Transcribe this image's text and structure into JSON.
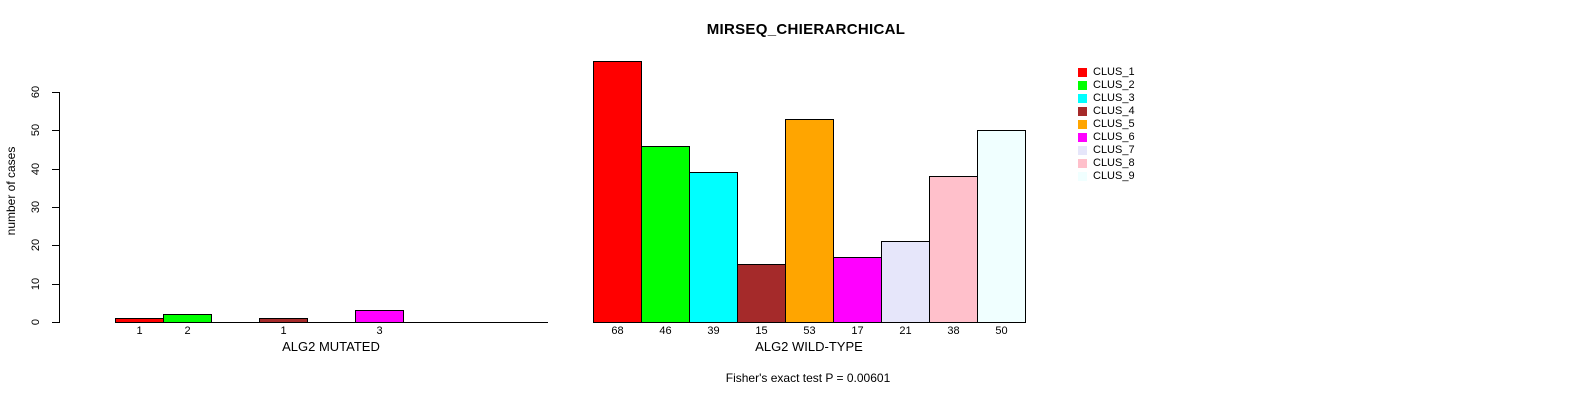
{
  "title": "MIRSEQ_CHIERARCHICAL",
  "y_axis": {
    "label": "number of cases",
    "ticks": [
      0,
      10,
      20,
      30,
      40,
      50,
      60
    ]
  },
  "footer": "Fisher's exact test P = 0.00601",
  "legend": {
    "items": [
      {
        "label": "CLUS_1",
        "color": "#FF0000"
      },
      {
        "label": "CLUS_2",
        "color": "#00FF00"
      },
      {
        "label": "CLUS_3",
        "color": "#00FFFF"
      },
      {
        "label": "CLUS_4",
        "color": "#A52A2A"
      },
      {
        "label": "CLUS_5",
        "color": "#FFA500"
      },
      {
        "label": "CLUS_6",
        "color": "#FF00FF"
      },
      {
        "label": "CLUS_7",
        "color": "#E6E6FA"
      },
      {
        "label": "CLUS_8",
        "color": "#FFC0CB"
      },
      {
        "label": "CLUS_9",
        "color": "#F0FFFF"
      }
    ]
  },
  "chart_data": {
    "type": "bar",
    "title": "MIRSEQ_CHIERARCHICAL",
    "ylabel": "number of cases",
    "ylim": [
      0,
      60
    ],
    "yticks": [
      0,
      10,
      20,
      30,
      40,
      50,
      60
    ],
    "grid": false,
    "legend_position": "right",
    "clusters": [
      "CLUS_1",
      "CLUS_2",
      "CLUS_3",
      "CLUS_4",
      "CLUS_5",
      "CLUS_6",
      "CLUS_7",
      "CLUS_8",
      "CLUS_9"
    ],
    "colors": [
      "#FF0000",
      "#00FF00",
      "#00FFFF",
      "#A52A2A",
      "#FFA500",
      "#FF00FF",
      "#E6E6FA",
      "#FFC0CB",
      "#F0FFFF"
    ],
    "groups": [
      {
        "key": "mutated",
        "label": "ALG2 MUTATED",
        "values": [
          1,
          2,
          0,
          1,
          0,
          3,
          0,
          0,
          0
        ]
      },
      {
        "key": "wildtype",
        "label": "ALG2 WILD-TYPE",
        "values": [
          68,
          46,
          39,
          15,
          53,
          17,
          21,
          38,
          50
        ]
      }
    ],
    "annotation": "Fisher's exact test P = 0.00601"
  }
}
